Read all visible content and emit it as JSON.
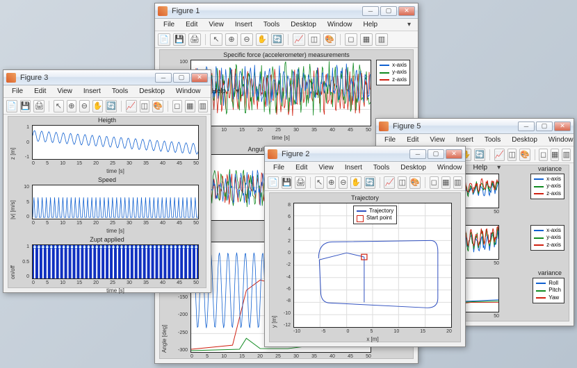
{
  "menus": [
    "File",
    "Edit",
    "View",
    "Insert",
    "Tools",
    "Desktop",
    "Window",
    "Help"
  ],
  "toolbar_icons": [
    "📄",
    "💾",
    "🖨",
    "|",
    "↖",
    "⊕",
    "⊖",
    "✋",
    "🔄",
    "|",
    "📈",
    "◫",
    "🎨",
    "|",
    "◻",
    "▦",
    "▥"
  ],
  "colors": {
    "x": "#1060d0",
    "y": "#108a20",
    "z": "#d02010",
    "trajectory": "#3050c0",
    "start": "#d02010",
    "roll": "#1060d0",
    "pitch": "#108a20",
    "yaw": "#d02010",
    "zupt": "#1030c0"
  },
  "fig1": {
    "title": "Figure 1",
    "chart1_title": "Specific force (accelerometer) measurements",
    "chart1_ylabel": "force [m/s²]",
    "chart1_xlabel": "time [s]",
    "chart1_ylim": [
      -50,
      100
    ],
    "chart1_yticks": [
      -50,
      0,
      50,
      100
    ],
    "chart1_xlim": [
      0,
      50
    ],
    "chart1_xticks": [
      0,
      5,
      10,
      15,
      20,
      25,
      30,
      35,
      40,
      45,
      50
    ],
    "chart2_title": "Angular rate measurements",
    "chart2_xlabel": "time [s]",
    "chart3_xlabel": "time [s]",
    "chart3_ylabel": "Angle [deg]",
    "chart3_ylim": [
      -300,
      0
    ],
    "chart3_yticks": [
      -300,
      -250,
      -200,
      -150,
      -100,
      -50,
      0
    ],
    "chart3_xticks": [
      0,
      5,
      10,
      15,
      20,
      25,
      30,
      35,
      40,
      45,
      50
    ],
    "legend": [
      "x-axis",
      "y-axis",
      "z-axis"
    ]
  },
  "fig2": {
    "title": "Figure 2",
    "chart_title": "Trajectory",
    "xlabel": "x [m]",
    "ylabel": "y [m]",
    "xlim": [
      -10,
      20
    ],
    "xticks": [
      -10,
      -5,
      0,
      5,
      10,
      15,
      20
    ],
    "ylim": [
      -12,
      8
    ],
    "yticks": [
      -12,
      -10,
      -8,
      -6,
      -4,
      -2,
      0,
      2,
      4,
      6,
      8
    ],
    "legend": [
      "Trajectory",
      "Start point"
    ]
  },
  "fig3": {
    "title": "Figure 3",
    "chart1_title": "Heigth",
    "chart1_ylabel": "z [m]",
    "chart1_xlabel": "time [s]",
    "chart1_ylim": [
      -1,
      1
    ],
    "chart1_yticks": [
      -1,
      0,
      1
    ],
    "chart2_title": "Speed",
    "chart2_ylabel": "|v| [m/s]",
    "chart2_xlabel": "time [s]",
    "chart2_ylim": [
      0,
      10
    ],
    "chart2_yticks": [
      0,
      5,
      10
    ],
    "chart3_title": "Zupt applied",
    "chart3_ylabel": "on/off",
    "chart3_xlabel": "time [s]",
    "chart3_ylim": [
      0,
      1
    ],
    "chart3_yticks": [
      0,
      0.5,
      1
    ],
    "xticks": [
      0,
      5,
      10,
      15,
      20,
      25,
      30,
      35,
      40,
      45,
      50
    ]
  },
  "fig5": {
    "title": "Figure 5",
    "chart1_suffix_title": "variance",
    "legend_xyz": [
      "x-axis",
      "y-axis",
      "z-axis"
    ],
    "chart3_suffix_title": "variance",
    "legend_rpy": [
      "Roll",
      "Pitch",
      "Yaw"
    ],
    "xticks": [
      40,
      45,
      50
    ]
  }
}
